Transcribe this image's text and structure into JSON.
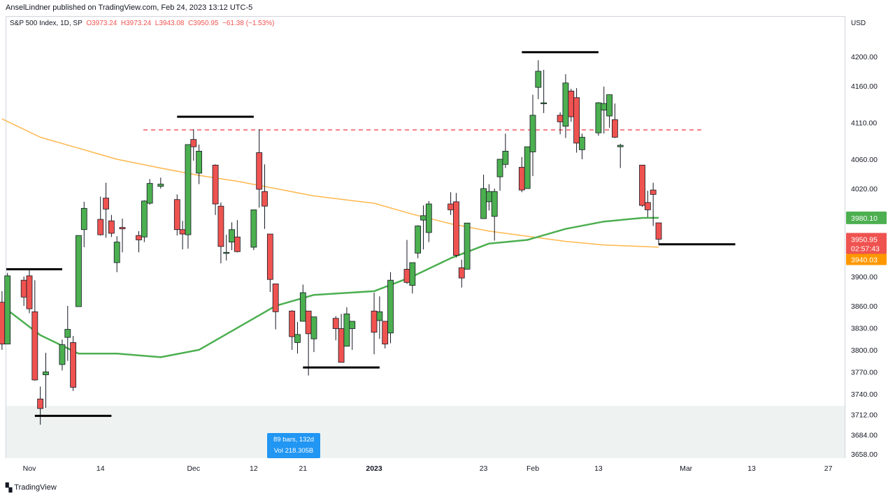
{
  "header": {
    "published_by": "AnselLindner published on TradingView.com, Feb 24, 2023 13:12 UTC-5"
  },
  "ohlc_bar": {
    "symbol": "S&P 500 Index, 1D, SP",
    "open": "O3973.24",
    "high": "H3973.24",
    "low": "L3943.08",
    "close": "C3950.95",
    "change": "−61.38 (−1.53%)"
  },
  "axis_currency": "USD",
  "price_labels": {
    "sma_green": "3980.10",
    "last_price": "3950.95",
    "countdown": "02:57:43",
    "sma_orange": "3940.03"
  },
  "measure_tool": {
    "bars": "89 bars, 132d",
    "vol": "Vol 218.305B"
  },
  "branding": {
    "logo_text": "TradingView"
  },
  "colors": {
    "up": "#4caf50",
    "down": "#ef5350",
    "sma_short": "#4caf50",
    "sma_long": "#ffb74d",
    "resistance_dash": "#f23645",
    "price_box_green": "#4caf50",
    "price_box_red": "#ef5350",
    "price_box_orange": "#ff9800"
  },
  "chart_data": {
    "type": "candlestick",
    "y_ticks": [
      3658,
      3684,
      3712,
      3740,
      3770,
      3800,
      3830,
      3860,
      3900,
      3940,
      3980,
      4020,
      4060,
      4110,
      4160,
      4200
    ],
    "ylim": [
      3645,
      4250
    ],
    "x_ticks": [
      {
        "label": "Nov",
        "date": "2022-11-01"
      },
      {
        "label": "14",
        "date": "2022-11-14"
      },
      {
        "label": "Dec",
        "date": "2022-12-01"
      },
      {
        "label": "12",
        "date": "2022-12-12"
      },
      {
        "label": "21",
        "date": "2022-12-21"
      },
      {
        "label": "2023",
        "date": "2023-01-03"
      },
      {
        "label": "23",
        "date": "2023-01-23"
      },
      {
        "label": "Feb",
        "date": "2023-02-01"
      },
      {
        "label": "13",
        "date": "2023-02-13"
      },
      {
        "label": "Mar",
        "date": "2023-03-01"
      },
      {
        "label": "13",
        "date": "2023-03-13"
      },
      {
        "label": "27",
        "date": "2023-03-27"
      }
    ],
    "candles": [
      {
        "d": "2022-10-27",
        "o": 3865,
        "h": 3880,
        "l": 3800,
        "c": 3808
      },
      {
        "d": "2022-10-28",
        "o": 3808,
        "h": 3905,
        "l": 3808,
        "c": 3901
      },
      {
        "d": "2022-10-31",
        "o": 3895,
        "h": 3900,
        "l": 3860,
        "c": 3872
      },
      {
        "d": "2022-11-01",
        "o": 3901,
        "h": 3911,
        "l": 3850,
        "c": 3856
      },
      {
        "d": "2022-11-02",
        "o": 3852,
        "h": 3895,
        "l": 3758,
        "c": 3759
      },
      {
        "d": "2022-11-03",
        "o": 3733,
        "h": 3750,
        "l": 3698,
        "c": 3720
      },
      {
        "d": "2022-11-04",
        "o": 3766,
        "h": 3796,
        "l": 3721,
        "c": 3770
      },
      {
        "d": "2022-11-07",
        "o": 3780,
        "h": 3814,
        "l": 3772,
        "c": 3807
      },
      {
        "d": "2022-11-08",
        "o": 3817,
        "h": 3860,
        "l": 3785,
        "c": 3828
      },
      {
        "d": "2022-11-09",
        "o": 3810,
        "h": 3819,
        "l": 3744,
        "c": 3749
      },
      {
        "d": "2022-11-10",
        "o": 3859,
        "h": 3956,
        "l": 3859,
        "c": 3956
      },
      {
        "d": "2022-11-11",
        "o": 3964,
        "h": 4002,
        "l": 3940,
        "c": 3993
      },
      {
        "d": "2022-11-14",
        "o": 3978,
        "h": 4009,
        "l": 3956,
        "c": 3957
      },
      {
        "d": "2022-11-15",
        "o": 4007,
        "h": 4028,
        "l": 3953,
        "c": 3992
      },
      {
        "d": "2022-11-16",
        "o": 3976,
        "h": 3984,
        "l": 3954,
        "c": 3959
      },
      {
        "d": "2022-11-17",
        "o": 3919,
        "h": 3955,
        "l": 3906,
        "c": 3947
      },
      {
        "d": "2022-11-18",
        "o": 3967,
        "h": 3979,
        "l": 3933,
        "c": 3965
      },
      {
        "d": "2022-11-21",
        "o": 3956,
        "h": 3962,
        "l": 3933,
        "c": 3950
      },
      {
        "d": "2022-11-22",
        "o": 3954,
        "h": 4004,
        "l": 3947,
        "c": 4003
      },
      {
        "d": "2022-11-23",
        "o": 4000,
        "h": 4033,
        "l": 3998,
        "c": 4027
      },
      {
        "d": "2022-11-25",
        "o": 4023,
        "h": 4035,
        "l": 4020,
        "c": 4026
      },
      {
        "d": "2022-11-28",
        "o": 4005,
        "h": 4012,
        "l": 3956,
        "c": 3964
      },
      {
        "d": "2022-11-29",
        "o": 3964,
        "h": 3976,
        "l": 3937,
        "c": 3958
      },
      {
        "d": "2022-11-30",
        "o": 3957,
        "h": 4080,
        "l": 3938,
        "c": 4080
      },
      {
        "d": "2022-12-01",
        "o": 4087,
        "h": 4101,
        "l": 4058,
        "c": 4077
      },
      {
        "d": "2022-12-02",
        "o": 4041,
        "h": 4080,
        "l": 4026,
        "c": 4071
      },
      {
        "d": "2022-12-05",
        "o": 4052,
        "h": 4053,
        "l": 3984,
        "c": 3999
      },
      {
        "d": "2022-12-06",
        "o": 3996,
        "h": 4001,
        "l": 3918,
        "c": 3941
      },
      {
        "d": "2022-12-07",
        "o": 3933,
        "h": 3957,
        "l": 3922,
        "c": 3933
      },
      {
        "d": "2022-12-08",
        "o": 3947,
        "h": 3974,
        "l": 3936,
        "c": 3964
      },
      {
        "d": "2022-12-09",
        "o": 3954,
        "h": 3977,
        "l": 3933,
        "c": 3934
      },
      {
        "d": "2022-12-12",
        "o": 3940,
        "h": 3991,
        "l": 3936,
        "c": 3991
      },
      {
        "d": "2022-12-13",
        "o": 4069,
        "h": 4101,
        "l": 3994,
        "c": 4019
      },
      {
        "d": "2022-12-14",
        "o": 4016,
        "h": 4053,
        "l": 3965,
        "c": 3996
      },
      {
        "d": "2022-12-15",
        "o": 3958,
        "h": 3958,
        "l": 3879,
        "c": 3896
      },
      {
        "d": "2022-12-16",
        "o": 3890,
        "h": 3890,
        "l": 3828,
        "c": 3852
      },
      {
        "d": "2022-12-19",
        "o": 3853,
        "h": 3854,
        "l": 3800,
        "c": 3818
      },
      {
        "d": "2022-12-20",
        "o": 3810,
        "h": 3838,
        "l": 3795,
        "c": 3821
      },
      {
        "d": "2022-12-21",
        "o": 3839,
        "h": 3889,
        "l": 3839,
        "c": 3878
      },
      {
        "d": "2022-12-22",
        "o": 3853,
        "h": 3853,
        "l": 3765,
        "c": 3822
      },
      {
        "d": "2022-12-23",
        "o": 3815,
        "h": 3845,
        "l": 3797,
        "c": 3845
      },
      {
        "d": "2022-12-27",
        "o": 3843,
        "h": 3846,
        "l": 3813,
        "c": 3829
      },
      {
        "d": "2022-12-28",
        "o": 3829,
        "h": 3849,
        "l": 3783,
        "c": 3783
      },
      {
        "d": "2022-12-29",
        "o": 3805,
        "h": 3858,
        "l": 3805,
        "c": 3849
      },
      {
        "d": "2022-12-30",
        "o": 3829,
        "h": 3839,
        "l": 3800,
        "c": 3839
      },
      {
        "d": "2023-01-03",
        "o": 3853,
        "h": 3878,
        "l": 3794,
        "c": 3824
      },
      {
        "d": "2023-01-04",
        "o": 3840,
        "h": 3873,
        "l": 3815,
        "c": 3852
      },
      {
        "d": "2023-01-05",
        "o": 3839,
        "h": 3839,
        "l": 3802,
        "c": 3808
      },
      {
        "d": "2023-01-06",
        "o": 3823,
        "h": 3906,
        "l": 3809,
        "c": 3895
      },
      {
        "d": "2023-01-09",
        "o": 3910,
        "h": 3950,
        "l": 3890,
        "c": 3892
      },
      {
        "d": "2023-01-10",
        "o": 3888,
        "h": 3919,
        "l": 3877,
        "c": 3919
      },
      {
        "d": "2023-01-11",
        "o": 3932,
        "h": 3970,
        "l": 3925,
        "c": 3969
      },
      {
        "d": "2023-01-12",
        "o": 3977,
        "h": 3997,
        "l": 3937,
        "c": 3983
      },
      {
        "d": "2023-01-13",
        "o": 3960,
        "h": 4003,
        "l": 3947,
        "c": 3999
      },
      {
        "d": "2023-01-17",
        "o": 3999,
        "h": 4015,
        "l": 3984,
        "c": 3991
      },
      {
        "d": "2023-01-18",
        "o": 4002,
        "h": 4014,
        "l": 3926,
        "c": 3929
      },
      {
        "d": "2023-01-19",
        "o": 3912,
        "h": 3923,
        "l": 3885,
        "c": 3898
      },
      {
        "d": "2023-01-20",
        "o": 3910,
        "h": 3973,
        "l": 3910,
        "c": 3973
      },
      {
        "d": "2023-01-23",
        "o": 3979,
        "h": 4039,
        "l": 3979,
        "c": 4020
      },
      {
        "d": "2023-01-24",
        "o": 4002,
        "h": 4026,
        "l": 3990,
        "c": 4016
      },
      {
        "d": "2023-01-25",
        "o": 3982,
        "h": 4020,
        "l": 3949,
        "c": 4016
      },
      {
        "d": "2023-01-26",
        "o": 4036,
        "h": 4060,
        "l": 4017,
        "c": 4060
      },
      {
        "d": "2023-01-27",
        "o": 4053,
        "h": 4095,
        "l": 4048,
        "c": 4071
      },
      {
        "d": "2023-01-30",
        "o": 4049,
        "h": 4063,
        "l": 4015,
        "c": 4018
      },
      {
        "d": "2023-01-31",
        "o": 4020,
        "h": 4077,
        "l": 4020,
        "c": 4077
      },
      {
        "d": "2023-02-01",
        "o": 4070,
        "h": 4148,
        "l": 4037,
        "c": 4120
      },
      {
        "d": "2023-02-02",
        "o": 4158,
        "h": 4195,
        "l": 4142,
        "c": 4180
      },
      {
        "d": "2023-02-03",
        "o": 4136,
        "h": 4182,
        "l": 4123,
        "c": 4137
      },
      {
        "d": "2023-02-06",
        "o": 4120,
        "h": 4124,
        "l": 4094,
        "c": 4111
      },
      {
        "d": "2023-02-07",
        "o": 4105,
        "h": 4176,
        "l": 4089,
        "c": 4164
      },
      {
        "d": "2023-02-08",
        "o": 4153,
        "h": 4156,
        "l": 4111,
        "c": 4118
      },
      {
        "d": "2023-02-09",
        "o": 4144,
        "h": 4157,
        "l": 4069,
        "c": 4082
      },
      {
        "d": "2023-02-10",
        "o": 4073,
        "h": 4095,
        "l": 4060,
        "c": 4090
      },
      {
        "d": "2023-02-13",
        "o": 4096,
        "h": 4138,
        "l": 4092,
        "c": 4137
      },
      {
        "d": "2023-02-14",
        "o": 4127,
        "h": 4159,
        "l": 4095,
        "c": 4136
      },
      {
        "d": "2023-02-15",
        "o": 4119,
        "h": 4148,
        "l": 4103,
        "c": 4148
      },
      {
        "d": "2023-02-16",
        "o": 4114,
        "h": 4136,
        "l": 4089,
        "c": 4090
      },
      {
        "d": "2023-02-17",
        "o": 4077,
        "h": 4081,
        "l": 4048,
        "c": 4079
      },
      {
        "d": "2023-02-21",
        "o": 4052,
        "h": 4052,
        "l": 3995,
        "c": 3997
      },
      {
        "d": "2023-02-22",
        "o": 4001,
        "h": 4017,
        "l": 3981,
        "c": 3991
      },
      {
        "d": "2023-02-23",
        "o": 4018,
        "h": 4028,
        "l": 3969,
        "c": 4012
      },
      {
        "d": "2023-02-24",
        "o": 3973.24,
        "h": 3973.24,
        "l": 3943.08,
        "c": 3950.95
      }
    ],
    "sma_short": {
      "name": "",
      "points": [
        [
          "2022-10-27",
          3860
        ],
        [
          "2022-11-03",
          3820
        ],
        [
          "2022-11-10",
          3795
        ],
        [
          "2022-11-17",
          3795
        ],
        [
          "2022-11-25",
          3790
        ],
        [
          "2022-12-02",
          3800
        ],
        [
          "2022-12-09",
          3830
        ],
        [
          "2022-12-16",
          3860
        ],
        [
          "2022-12-23",
          3875
        ],
        [
          "2023-01-03",
          3880
        ],
        [
          "2023-01-10",
          3900
        ],
        [
          "2023-01-17",
          3925
        ],
        [
          "2023-01-24",
          3945
        ],
        [
          "2023-01-31",
          3950
        ],
        [
          "2023-02-07",
          3965
        ],
        [
          "2023-02-14",
          3975
        ],
        [
          "2023-02-21",
          3980
        ],
        [
          "2023-02-24",
          3980.1
        ]
      ]
    },
    "sma_long": {
      "name": "",
      "points": [
        [
          "2022-10-27",
          4115
        ],
        [
          "2022-11-03",
          4090
        ],
        [
          "2022-11-10",
          4075
        ],
        [
          "2022-11-17",
          4060
        ],
        [
          "2022-11-25",
          4048
        ],
        [
          "2022-12-02",
          4038
        ],
        [
          "2022-12-09",
          4030
        ],
        [
          "2022-12-16",
          4020
        ],
        [
          "2022-12-23",
          4010
        ],
        [
          "2023-01-03",
          4000
        ],
        [
          "2023-01-10",
          3985
        ],
        [
          "2023-01-17",
          3972
        ],
        [
          "2023-01-24",
          3962
        ],
        [
          "2023-01-31",
          3955
        ],
        [
          "2023-02-07",
          3948
        ],
        [
          "2023-02-14",
          3943
        ],
        [
          "2023-02-21",
          3941
        ],
        [
          "2023-02-24",
          3940.03
        ]
      ]
    },
    "resistance_level": 4100,
    "annotation_lines": [
      {
        "from": "2022-10-25",
        "to": "2022-11-07",
        "y": 3910
      },
      {
        "from": "2022-11-02",
        "to": "2022-11-16",
        "y": 3710
      },
      {
        "from": "2022-11-28",
        "to": "2022-12-12",
        "y": 4118
      },
      {
        "from": "2022-12-21",
        "to": "2023-01-04",
        "y": 3776
      },
      {
        "from": "2023-01-30",
        "to": "2023-02-13",
        "y": 4206
      },
      {
        "from": "2023-02-24",
        "to": "2023-03-10",
        "y": 3944
      }
    ]
  }
}
